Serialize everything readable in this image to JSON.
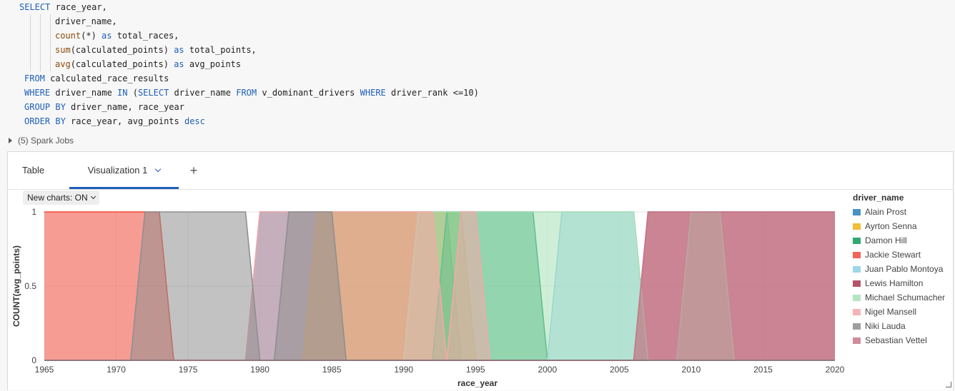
{
  "code": {
    "lines": [
      [
        [
          "kw",
          "SELECT"
        ],
        [
          "t",
          " race_year,"
        ]
      ],
      [
        [
          "t",
          "       driver_name,"
        ]
      ],
      [
        [
          "fn",
          "count"
        ],
        [
          "t",
          "(*) "
        ],
        [
          "kw",
          "as"
        ],
        [
          "t",
          " total_races,"
        ]
      ],
      [
        [
          "fn",
          "sum"
        ],
        [
          "t",
          "(calculated_points) "
        ],
        [
          "kw",
          "as"
        ],
        [
          "t",
          " total_points,"
        ]
      ],
      [
        [
          "fn",
          "avg"
        ],
        [
          "t",
          "(calculated_points) "
        ],
        [
          "kw",
          "as"
        ],
        [
          "t",
          " avg_points"
        ]
      ],
      [
        [
          "kw",
          "FROM"
        ],
        [
          "t",
          " calculated_race_results"
        ]
      ],
      [
        [
          "kw",
          "WHERE"
        ],
        [
          "t",
          " driver_name "
        ],
        [
          "kw",
          "IN"
        ],
        [
          "t",
          " ("
        ],
        [
          "kw",
          "SELECT"
        ],
        [
          "t",
          " driver_name "
        ],
        [
          "kw",
          "FROM"
        ],
        [
          "t",
          " v_dominant_drivers "
        ],
        [
          "kw",
          "WHERE"
        ],
        [
          "t",
          " driver_rank <=10)"
        ]
      ],
      [
        [
          "kw",
          "GROUP BY"
        ],
        [
          "t",
          " driver_name, race_year"
        ]
      ],
      [
        [
          "kw",
          "ORDER BY"
        ],
        [
          "t",
          " race_year, avg_points "
        ],
        [
          "kw",
          "desc"
        ]
      ]
    ]
  },
  "spark_jobs": {
    "label": "(5) Spark Jobs"
  },
  "tabs": {
    "table": "Table",
    "visualization": "Visualization 1",
    "add": "+"
  },
  "new_charts": {
    "label": "New charts: ON"
  },
  "chart_data": {
    "type": "area",
    "xlabel": "race_year",
    "ylabel": "COUNT(avg_points)",
    "xlim": [
      1965,
      2020
    ],
    "ylim": [
      0,
      1
    ],
    "x_ticks": [
      "1965",
      "1970",
      "1975",
      "1980",
      "1985",
      "1990",
      "1995",
      "2000",
      "2005",
      "2010",
      "2015",
      "2020"
    ],
    "y_ticks": [
      "0",
      "0.5",
      "1"
    ],
    "legend_title": "driver_name",
    "legend_position": "right",
    "series": [
      {
        "name": "Alain Prost",
        "color": "#2a7fb8",
        "years": [
          1980,
          1981,
          1982,
          1983,
          1984,
          1985,
          1986,
          1987,
          1988,
          1989,
          1990,
          1991,
          1992,
          1993
        ]
      },
      {
        "name": "Ayrton Senna",
        "color": "#f0b21a",
        "years": [
          1984,
          1985,
          1986,
          1987,
          1988,
          1989,
          1990,
          1991,
          1992,
          1993,
          1994
        ]
      },
      {
        "name": "Damon Hill",
        "color": "#0e9a5a",
        "years": [
          1993,
          1994,
          1995,
          1996,
          1997,
          1998,
          1999
        ]
      },
      {
        "name": "Jackie Stewart",
        "color": "#f04a3a",
        "years": [
          1965,
          1966,
          1967,
          1968,
          1969,
          1970,
          1971,
          1972,
          1973
        ]
      },
      {
        "name": "Juan Pablo Montoya",
        "color": "#8ccfe6",
        "years": [
          2001,
          2002,
          2003,
          2004,
          2005,
          2006
        ]
      },
      {
        "name": "Lewis Hamilton",
        "color": "#a8384f",
        "years": [
          2007,
          2008,
          2009,
          2010,
          2011,
          2012,
          2013,
          2014,
          2015,
          2016,
          2017,
          2018,
          2019,
          2020
        ]
      },
      {
        "name": "Michael Schumacher",
        "color": "#a8e0b8",
        "years": [
          1991,
          1992,
          1993,
          1994,
          1995,
          1996,
          1997,
          1998,
          1999,
          2000,
          2001,
          2002,
          2003,
          2004,
          2005,
          2006,
          2010,
          2011,
          2012
        ]
      },
      {
        "name": "Nigel Mansell",
        "color": "#f5a8a8",
        "years": [
          1980,
          1981,
          1982,
          1983,
          1984,
          1985,
          1986,
          1987,
          1988,
          1989,
          1990,
          1991,
          1992,
          1994,
          1995
        ]
      },
      {
        "name": "Niki Lauda",
        "color": "#8f8f8f",
        "years": [
          1972,
          1973,
          1974,
          1975,
          1976,
          1977,
          1978,
          1979,
          1982,
          1983,
          1984,
          1985
        ]
      },
      {
        "name": "Sebastian Vettel",
        "color": "#c8788a",
        "years": [
          2007,
          2008,
          2009,
          2010,
          2011,
          2012,
          2013,
          2014,
          2015,
          2016,
          2017,
          2018,
          2019,
          2020
        ]
      }
    ]
  }
}
